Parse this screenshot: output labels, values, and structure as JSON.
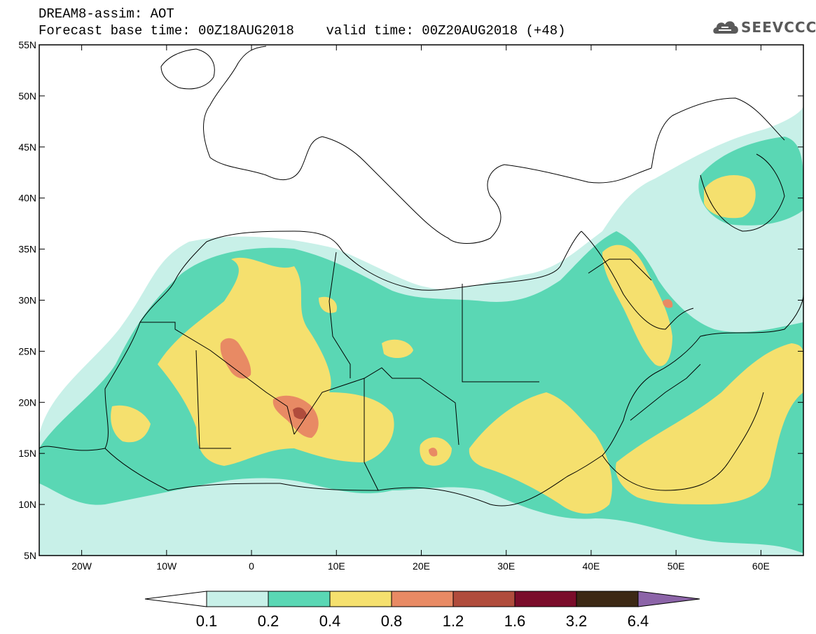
{
  "header": {
    "title": "DREAM8-assim: AOT",
    "base_label": "Forecast base time: 00Z18AUG2018",
    "valid_label": "valid time: 00Z20AUG2018 (+48)"
  },
  "logo": {
    "text": "SEEVCCC",
    "icon": "cloud-icon"
  },
  "map": {
    "variable": "Aerosol Optical Thickness",
    "lon_range": [
      -25,
      65
    ],
    "lat_range": [
      5,
      55
    ],
    "lat_ticks": [
      "5N",
      "10N",
      "15N",
      "20N",
      "25N",
      "30N",
      "35N",
      "40N",
      "45N",
      "50N",
      "55N"
    ],
    "lon_ticks": [
      "20W",
      "10W",
      "0",
      "10E",
      "20E",
      "30E",
      "40E",
      "50E",
      "60E"
    ]
  },
  "colorbar": {
    "levels": [
      "0.1",
      "0.2",
      "0.4",
      "0.8",
      "1.2",
      "1.6",
      "3.2",
      "6.4"
    ],
    "colors": [
      "#c8f0e8",
      "#5ad7b4",
      "#f5e06e",
      "#e88a64",
      "#b04c3c",
      "#7a0c2a",
      "#3c2814",
      "#8c64a8"
    ]
  }
}
